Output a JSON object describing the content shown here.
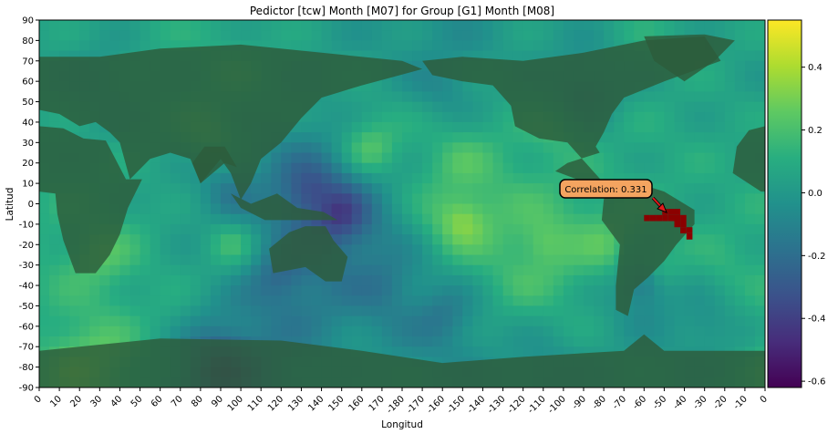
{
  "chart_data": {
    "type": "heatmap",
    "title": "Pedictor [tcw] Month [M07] for Group [G1] Month [M08]",
    "xlabel": "Longitud",
    "ylabel": "Latitud",
    "x_ticks": [
      "0",
      "10",
      "20",
      "30",
      "40",
      "50",
      "60",
      "70",
      "80",
      "90",
      "100",
      "110",
      "120",
      "130",
      "140",
      "150",
      "160",
      "170",
      "-180",
      "-170",
      "-160",
      "-150",
      "-140",
      "-130",
      "-120",
      "-110",
      "-100",
      "-90",
      "-80",
      "-70",
      "-60",
      "-50",
      "-40",
      "-30",
      "-20",
      "-10",
      "0"
    ],
    "y_ticks": [
      "90",
      "80",
      "70",
      "60",
      "50",
      "40",
      "30",
      "20",
      "10",
      "0",
      "-10",
      "-20",
      "-30",
      "-40",
      "-50",
      "-60",
      "-70",
      "-80",
      "-90"
    ],
    "xlim": [
      0,
      360
    ],
    "ylim": [
      -90,
      90
    ],
    "colormap": "viridis",
    "colorbar": {
      "range": [
        -0.62,
        0.55
      ],
      "ticks": [
        "0.4",
        "0.2",
        "0.0",
        "-0.2",
        "-0.4",
        "-0.6"
      ],
      "tick_values": [
        0.4,
        0.2,
        0.0,
        -0.2,
        -0.4,
        -0.6
      ]
    },
    "field_features": [
      {
        "lon": 0,
        "lat": 85,
        "value": 0.05
      },
      {
        "lon": 60,
        "lat": 85,
        "value": 0.1
      },
      {
        "lon": 200,
        "lat": 85,
        "value": -0.05
      },
      {
        "lon": 300,
        "lat": 85,
        "value": 0.1
      },
      {
        "lon": 95,
        "lat": 65,
        "value": 0.15
      },
      {
        "lon": 30,
        "lat": 60,
        "value": -0.05
      },
      {
        "lon": 270,
        "lat": 55,
        "value": -0.2
      },
      {
        "lon": 200,
        "lat": 58,
        "value": -0.1
      },
      {
        "lon": 85,
        "lat": 35,
        "value": 0.25
      },
      {
        "lon": 255,
        "lat": 35,
        "value": 0.2
      },
      {
        "lon": 300,
        "lat": 30,
        "value": 0.1
      },
      {
        "lon": 165,
        "lat": 28,
        "value": 0.3
      },
      {
        "lon": 210,
        "lat": 20,
        "value": 0.25
      },
      {
        "lon": 135,
        "lat": 5,
        "value": -0.45
      },
      {
        "lon": 148,
        "lat": -5,
        "value": -0.55
      },
      {
        "lon": 95,
        "lat": 5,
        "value": -0.2
      },
      {
        "lon": 20,
        "lat": -5,
        "value": 0.1
      },
      {
        "lon": 210,
        "lat": -8,
        "value": 0.45
      },
      {
        "lon": 250,
        "lat": -20,
        "value": 0.35
      },
      {
        "lon": 280,
        "lat": -20,
        "value": 0.3
      },
      {
        "lon": 30,
        "lat": -25,
        "value": 0.3
      },
      {
        "lon": 95,
        "lat": -20,
        "value": 0.25
      },
      {
        "lon": 120,
        "lat": -35,
        "value": -0.3
      },
      {
        "lon": 170,
        "lat": -40,
        "value": -0.2
      },
      {
        "lon": 240,
        "lat": -35,
        "value": 0.2
      },
      {
        "lon": 300,
        "lat": -40,
        "value": -0.3
      },
      {
        "lon": 310,
        "lat": -30,
        "value": 0.2
      },
      {
        "lon": 340,
        "lat": -30,
        "value": 0.15
      },
      {
        "lon": 60,
        "lat": -50,
        "value": 0.1
      },
      {
        "lon": 200,
        "lat": -55,
        "value": -0.2
      },
      {
        "lon": 330,
        "lat": -60,
        "value": -0.1
      },
      {
        "lon": 30,
        "lat": -75,
        "value": 0.3
      },
      {
        "lon": 20,
        "lat": -82,
        "value": 0.35
      },
      {
        "lon": 90,
        "lat": -82,
        "value": -0.55
      },
      {
        "lon": 160,
        "lat": -85,
        "value": 0.05
      },
      {
        "lon": 250,
        "lat": -85,
        "value": -0.1
      },
      {
        "lon": 320,
        "lat": -80,
        "value": 0.0
      }
    ],
    "highlight_region": {
      "color": "#8b0000",
      "cells": [
        [
          300,
          -7
        ],
        [
          303,
          -7
        ],
        [
          306,
          -7
        ],
        [
          309,
          -7
        ],
        [
          312,
          -7
        ],
        [
          309,
          -4
        ],
        [
          312,
          -4
        ],
        [
          315,
          -4
        ],
        [
          315,
          -7
        ],
        [
          318,
          -7
        ],
        [
          315,
          -10
        ],
        [
          318,
          -10
        ],
        [
          318,
          -13
        ],
        [
          321,
          -13
        ],
        [
          321,
          -16
        ]
      ]
    },
    "annotation": {
      "text": "Correlation: 0.331",
      "lon": 306,
      "lat": -4
    }
  }
}
